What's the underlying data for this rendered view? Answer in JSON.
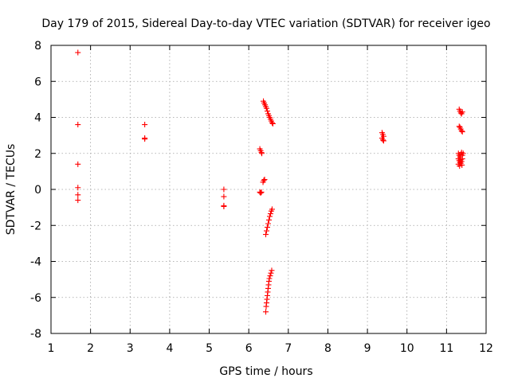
{
  "chart_data": {
    "type": "scatter",
    "title": "Day 179 of 2015, Sidereal Day-to-day VTEC variation (SDTVAR) for receiver igeo",
    "xlabel": "GPS time / hours",
    "ylabel": "SDTVAR / TECUs",
    "xlim": [
      1,
      12
    ],
    "ylim": [
      -8,
      8
    ],
    "xticks": [
      "1",
      "2",
      "3",
      "4",
      "5",
      "6",
      "7",
      "8",
      "9",
      "10",
      "11",
      "12"
    ],
    "yticks": [
      "8",
      "6",
      "4",
      "2",
      "0",
      "-2",
      "-4",
      "-6",
      "-8"
    ],
    "grid": true,
    "marker": "+",
    "color": "#ff0000",
    "series": [
      {
        "name": "SDTVAR",
        "points": [
          [
            1.68,
            7.6
          ],
          [
            1.68,
            3.6
          ],
          [
            1.68,
            1.4
          ],
          [
            1.68,
            0.1
          ],
          [
            1.68,
            -0.3
          ],
          [
            1.68,
            -0.6
          ],
          [
            3.37,
            3.6
          ],
          [
            3.37,
            2.85
          ],
          [
            3.37,
            2.8
          ],
          [
            5.37,
            0.0
          ],
          [
            5.37,
            -0.4
          ],
          [
            5.37,
            -0.9
          ],
          [
            5.37,
            -0.95
          ],
          [
            6.28,
            2.25
          ],
          [
            6.3,
            2.15
          ],
          [
            6.32,
            2.05
          ],
          [
            6.33,
            2.0
          ],
          [
            6.28,
            -0.15
          ],
          [
            6.3,
            -0.2
          ],
          [
            6.32,
            -0.15
          ],
          [
            6.36,
            0.4
          ],
          [
            6.38,
            0.5
          ],
          [
            6.4,
            0.55
          ],
          [
            6.37,
            4.9
          ],
          [
            6.39,
            4.8
          ],
          [
            6.41,
            4.7
          ],
          [
            6.43,
            4.6
          ],
          [
            6.45,
            4.5
          ],
          [
            6.47,
            4.35
          ],
          [
            6.49,
            4.2
          ],
          [
            6.51,
            4.1
          ],
          [
            6.53,
            4.0
          ],
          [
            6.55,
            3.9
          ],
          [
            6.57,
            3.8
          ],
          [
            6.59,
            3.7
          ],
          [
            6.61,
            3.65
          ],
          [
            6.43,
            -2.5
          ],
          [
            6.45,
            -2.3
          ],
          [
            6.47,
            -2.1
          ],
          [
            6.49,
            -1.9
          ],
          [
            6.51,
            -1.7
          ],
          [
            6.53,
            -1.5
          ],
          [
            6.55,
            -1.35
          ],
          [
            6.57,
            -1.2
          ],
          [
            6.59,
            -1.1
          ],
          [
            6.43,
            -6.8
          ],
          [
            6.44,
            -6.5
          ],
          [
            6.45,
            -6.3
          ],
          [
            6.46,
            -6.1
          ],
          [
            6.47,
            -5.9
          ],
          [
            6.48,
            -5.7
          ],
          [
            6.49,
            -5.5
          ],
          [
            6.5,
            -5.3
          ],
          [
            6.51,
            -5.1
          ],
          [
            6.52,
            -4.95
          ],
          [
            6.54,
            -4.8
          ],
          [
            6.56,
            -4.65
          ],
          [
            6.58,
            -4.5
          ],
          [
            9.37,
            3.15
          ],
          [
            9.39,
            3.05
          ],
          [
            9.41,
            2.95
          ],
          [
            9.37,
            2.85
          ],
          [
            9.39,
            2.75
          ],
          [
            9.41,
            2.7
          ],
          [
            11.32,
            4.45
          ],
          [
            11.34,
            4.35
          ],
          [
            11.36,
            4.25
          ],
          [
            11.38,
            4.2
          ],
          [
            11.4,
            4.3
          ],
          [
            11.32,
            3.5
          ],
          [
            11.34,
            3.45
          ],
          [
            11.36,
            3.35
          ],
          [
            11.38,
            3.25
          ],
          [
            11.4,
            3.2
          ],
          [
            11.3,
            2.0
          ],
          [
            11.32,
            1.9
          ],
          [
            11.34,
            1.8
          ],
          [
            11.36,
            1.95
          ],
          [
            11.38,
            2.05
          ],
          [
            11.4,
            1.9
          ],
          [
            11.42,
            2.0
          ],
          [
            11.3,
            1.7
          ],
          [
            11.32,
            1.6
          ],
          [
            11.34,
            1.5
          ],
          [
            11.36,
            1.65
          ],
          [
            11.38,
            1.55
          ],
          [
            11.4,
            1.7
          ],
          [
            11.3,
            1.4
          ],
          [
            11.33,
            1.3
          ],
          [
            11.36,
            1.45
          ],
          [
            11.39,
            1.35
          ]
        ]
      }
    ]
  }
}
